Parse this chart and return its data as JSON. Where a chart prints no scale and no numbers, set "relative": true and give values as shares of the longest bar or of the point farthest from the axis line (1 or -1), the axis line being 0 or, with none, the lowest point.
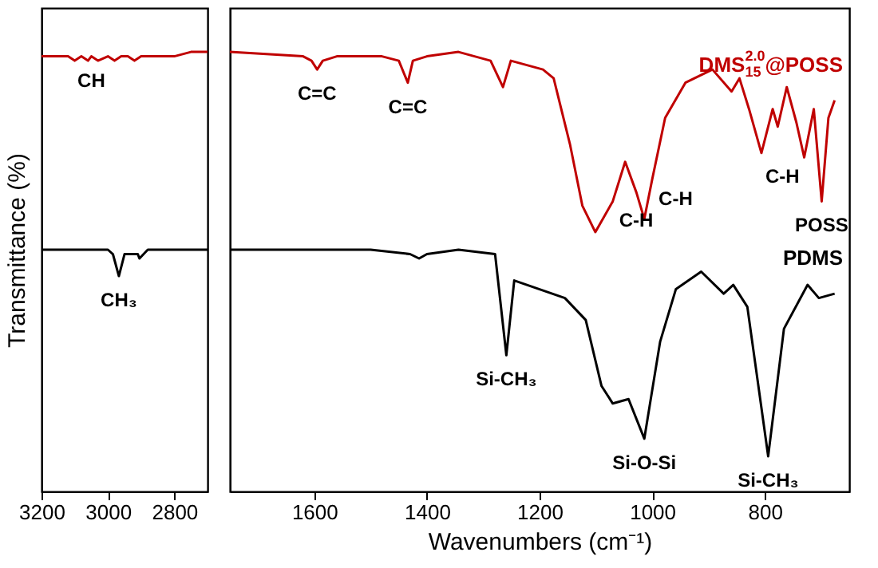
{
  "chart_data": [
    {
      "type": "line",
      "relative": true,
      "ylabel": "Transmittance (%)",
      "xlim": [
        3200,
        2700
      ],
      "xticks": [
        3200,
        3000,
        2800
      ],
      "grid": false,
      "series": [
        {
          "color": "#c00000",
          "x": [
            3200,
            3120,
            3100,
            3080,
            3060,
            3050,
            3030,
            3000,
            2980,
            2960,
            2940,
            2920,
            2900,
            2850,
            2800,
            2750,
            2700
          ],
          "values": [
            0.99,
            0.99,
            0.98,
            0.99,
            0.98,
            0.99,
            0.98,
            0.99,
            0.98,
            0.99,
            0.99,
            0.98,
            0.99,
            0.99,
            0.99,
            1.0,
            1.0
          ]
        },
        {
          "color": "#000000",
          "x": [
            3200,
            3100,
            3050,
            3000,
            2985,
            2967,
            2950,
            2930,
            2910,
            2905,
            2880,
            2800,
            2750,
            2700
          ],
          "values": [
            0.55,
            0.55,
            0.55,
            0.55,
            0.54,
            0.49,
            0.54,
            0.54,
            0.54,
            0.53,
            0.55,
            0.55,
            0.55,
            0.55
          ]
        }
      ],
      "annotations": [
        {
          "text": "CH",
          "x": 3050,
          "y": 0.99
        },
        {
          "text": "CH₃",
          "x": 2967,
          "y": 0.49
        }
      ]
    },
    {
      "type": "line",
      "relative": true,
      "xlabel": "Wavenumbers (cm⁻¹)",
      "xlim": [
        1750,
        650
      ],
      "xticks": [
        1600,
        1400,
        1200,
        1000,
        800
      ],
      "grid": false,
      "legend": false,
      "series": [
        {
          "name": "DMS$_{15}$$^{2.0}$@POSS",
          "color": "#c00000",
          "x": [
            1750,
            1620,
            1605,
            1595,
            1585,
            1560,
            1480,
            1450,
            1434,
            1425,
            1400,
            1344,
            1287,
            1265,
            1251,
            1194,
            1175,
            1146,
            1124,
            1101,
            1070,
            1048,
            1028,
            1014,
            1000,
            977,
            941,
            893,
            859,
            845,
            828,
            806,
            786,
            777,
            761,
            744,
            730,
            713,
            699,
            687,
            676
          ],
          "values": [
            1.0,
            0.99,
            0.98,
            0.96,
            0.98,
            0.99,
            0.99,
            0.98,
            0.93,
            0.98,
            0.99,
            1.0,
            0.98,
            0.92,
            0.98,
            0.96,
            0.94,
            0.79,
            0.65,
            0.59,
            0.66,
            0.75,
            0.68,
            0.62,
            0.71,
            0.85,
            0.93,
            0.96,
            0.91,
            0.94,
            0.87,
            0.77,
            0.87,
            0.83,
            0.92,
            0.84,
            0.76,
            0.87,
            0.66,
            0.85,
            0.89
          ]
        },
        {
          "name": "PDMS",
          "color": "#000000",
          "x": [
            1750,
            1600,
            1500,
            1430,
            1414,
            1400,
            1344,
            1279,
            1259,
            1245,
            1155,
            1118,
            1090,
            1070,
            1042,
            1014,
            986,
            958,
            913,
            873,
            856,
            831,
            794,
            766,
            724,
            704,
            676
          ],
          "values": [
            0.55,
            0.55,
            0.55,
            0.54,
            0.53,
            0.54,
            0.55,
            0.54,
            0.31,
            0.48,
            0.44,
            0.39,
            0.24,
            0.2,
            0.21,
            0.12,
            0.34,
            0.46,
            0.5,
            0.45,
            0.47,
            0.42,
            0.08,
            0.37,
            0.47,
            0.44,
            0.45
          ]
        }
      ],
      "annotations": [
        {
          "text": "C=C",
          "x": 1595,
          "y": 0.96
        },
        {
          "text": "C=C",
          "x": 1434,
          "y": 0.93
        },
        {
          "text": "C-H",
          "x": 1070,
          "y": 0.66
        },
        {
          "text": "C-H",
          "x": 1000,
          "y": 0.71
        },
        {
          "text": "C-H",
          "x": 730,
          "y": 0.76
        },
        {
          "text": "POSS",
          "x": 699,
          "y": 0.66
        },
        {
          "text": "Si-CH₃",
          "x": 1259,
          "y": 0.31
        },
        {
          "text": "Si-O-Si",
          "x": 1014,
          "y": 0.12
        },
        {
          "text": "Si-CH₃",
          "x": 794,
          "y": 0.08
        }
      ]
    }
  ]
}
